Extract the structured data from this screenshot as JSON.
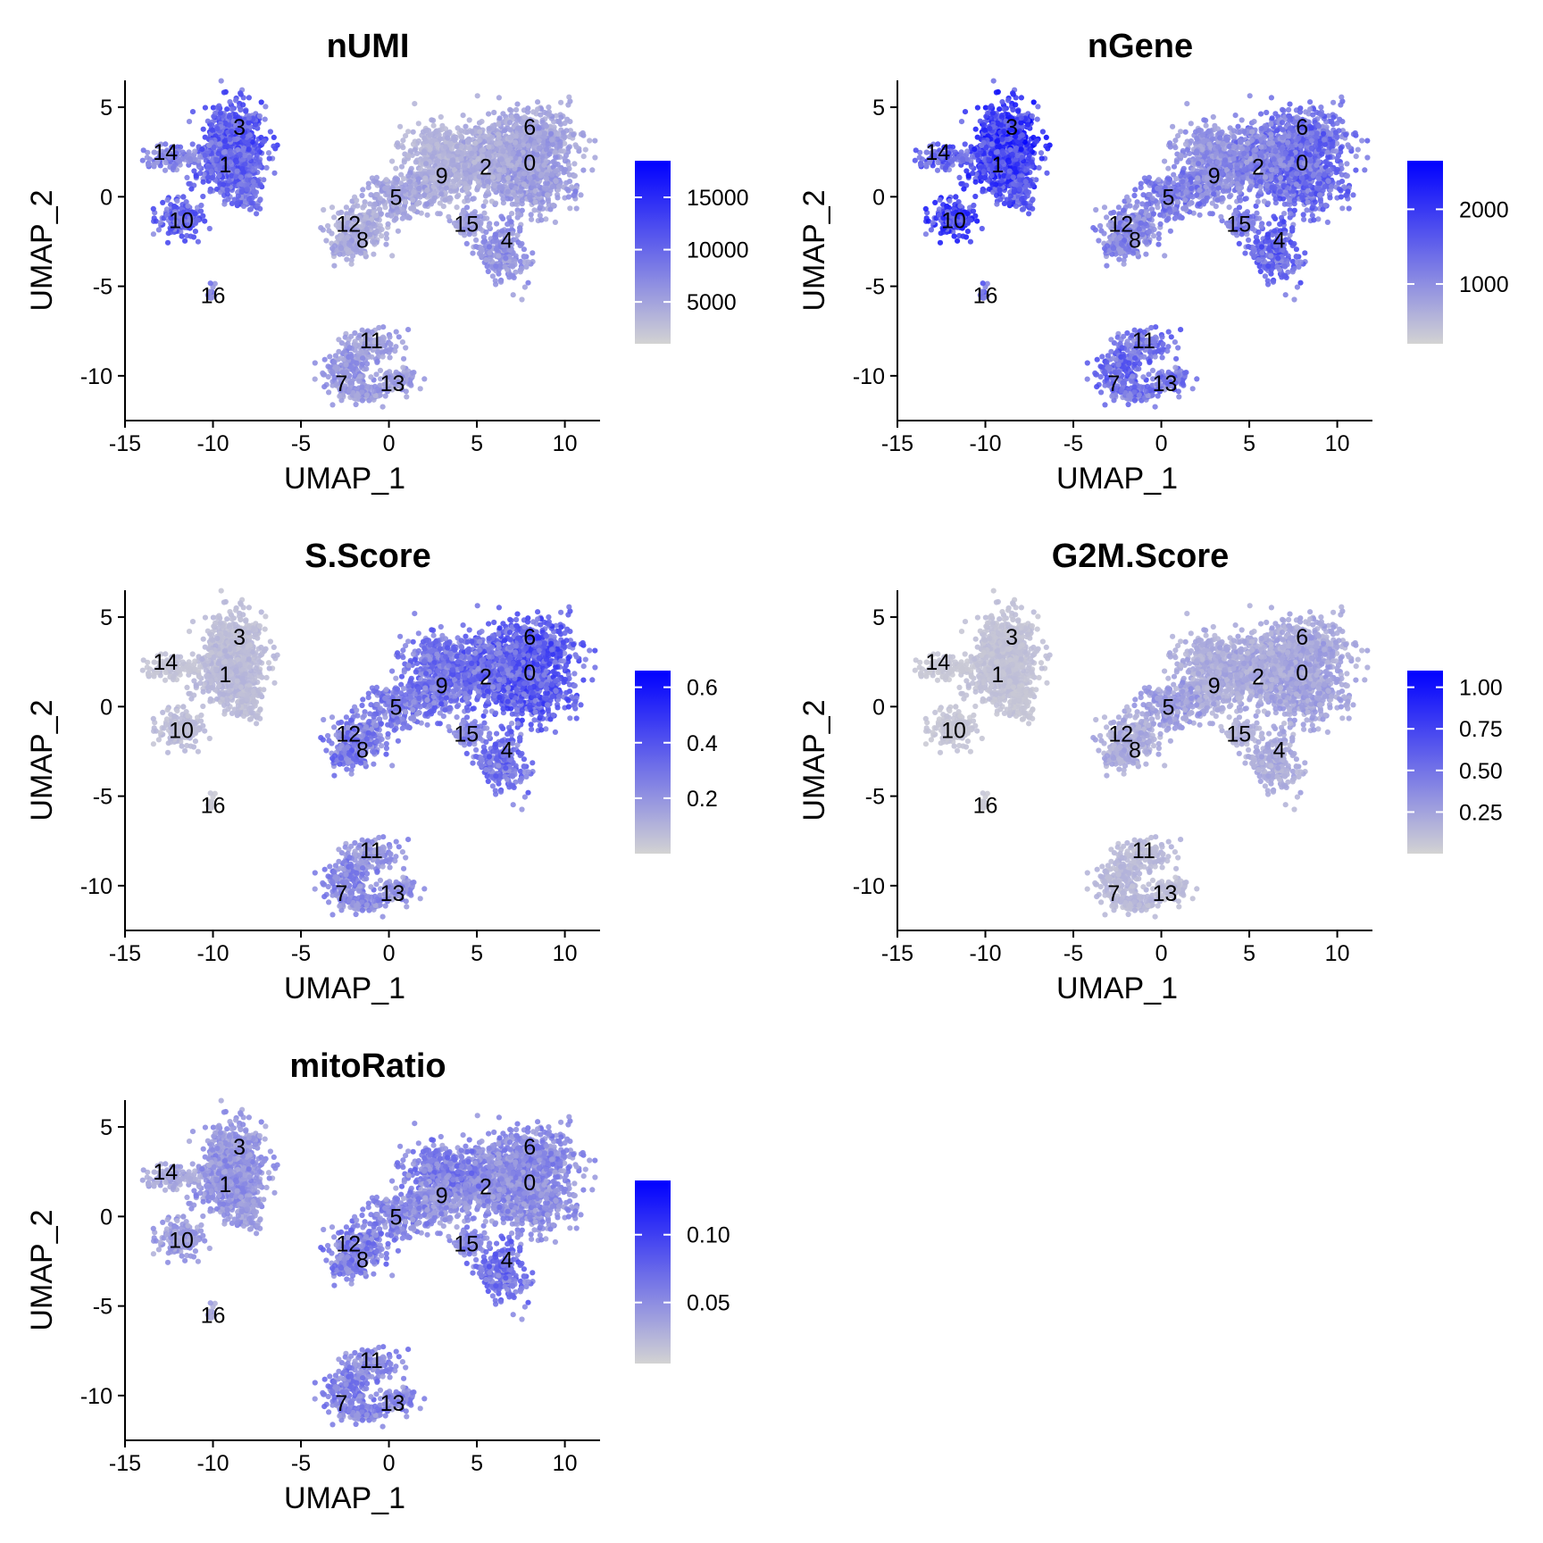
{
  "chart_data": [
    {
      "type": "scatter",
      "title": "nUMI",
      "xlabel": "UMAP_1",
      "ylabel": "UMAP_2",
      "xlim": [
        -15,
        12
      ],
      "ylim": [
        -12.5,
        6.5
      ],
      "xticks": [
        -15,
        -10,
        -5,
        0,
        5,
        10
      ],
      "yticks": [
        5,
        0,
        -5,
        -10
      ],
      "grid": false,
      "legend": {
        "position": "right",
        "low_color": "#d3d3d3",
        "high_color": "#0000ff",
        "min": 1000,
        "max": 18500,
        "ticks": [
          15000,
          10000,
          5000
        ]
      },
      "cluster_labels": [
        {
          "label": "3",
          "x": -8.5,
          "y": 3.9
        },
        {
          "label": "14",
          "x": -12.7,
          "y": 2.5
        },
        {
          "label": "1",
          "x": -9.3,
          "y": 1.8
        },
        {
          "label": "10",
          "x": -11.8,
          "y": -1.3
        },
        {
          "label": "16",
          "x": -10.0,
          "y": -5.5
        },
        {
          "label": "6",
          "x": 8.0,
          "y": 3.9
        },
        {
          "label": "2",
          "x": 5.5,
          "y": 1.7
        },
        {
          "label": "0",
          "x": 8.0,
          "y": 1.9
        },
        {
          "label": "9",
          "x": 3.0,
          "y": 1.2
        },
        {
          "label": "5",
          "x": 0.4,
          "y": 0.0
        },
        {
          "label": "12",
          "x": -2.3,
          "y": -1.5
        },
        {
          "label": "8",
          "x": -1.5,
          "y": -2.4
        },
        {
          "label": "15",
          "x": 4.4,
          "y": -1.5
        },
        {
          "label": "4",
          "x": 6.7,
          "y": -2.4
        },
        {
          "label": "11",
          "x": -1.0,
          "y": -8.0
        },
        {
          "label": "7",
          "x": -2.7,
          "y": -10.4
        },
        {
          "label": "13",
          "x": 0.2,
          "y": -10.4
        }
      ]
    },
    {
      "type": "scatter",
      "title": "nGene",
      "xlabel": "UMAP_1",
      "ylabel": "UMAP_2",
      "xlim": [
        -15,
        12
      ],
      "ylim": [
        -12.5,
        6.5
      ],
      "xticks": [
        -15,
        -10,
        -5,
        0,
        5,
        10
      ],
      "yticks": [
        5,
        0,
        -5,
        -10
      ],
      "grid": false,
      "legend": {
        "position": "right",
        "low_color": "#d3d3d3",
        "high_color": "#0000ff",
        "min": 200,
        "max": 2650,
        "ticks": [
          2000,
          1000
        ]
      },
      "cluster_labels": [
        {
          "label": "3",
          "x": -8.5,
          "y": 3.9
        },
        {
          "label": "14",
          "x": -12.7,
          "y": 2.5
        },
        {
          "label": "1",
          "x": -9.3,
          "y": 1.8
        },
        {
          "label": "10",
          "x": -11.8,
          "y": -1.3
        },
        {
          "label": "16",
          "x": -10.0,
          "y": -5.5
        },
        {
          "label": "6",
          "x": 8.0,
          "y": 3.9
        },
        {
          "label": "2",
          "x": 5.5,
          "y": 1.7
        },
        {
          "label": "0",
          "x": 8.0,
          "y": 1.9
        },
        {
          "label": "9",
          "x": 3.0,
          "y": 1.2
        },
        {
          "label": "5",
          "x": 0.4,
          "y": 0.0
        },
        {
          "label": "12",
          "x": -2.3,
          "y": -1.5
        },
        {
          "label": "8",
          "x": -1.5,
          "y": -2.4
        },
        {
          "label": "15",
          "x": 4.4,
          "y": -1.5
        },
        {
          "label": "4",
          "x": 6.7,
          "y": -2.4
        },
        {
          "label": "11",
          "x": -1.0,
          "y": -8.0
        },
        {
          "label": "7",
          "x": -2.7,
          "y": -10.4
        },
        {
          "label": "13",
          "x": 0.2,
          "y": -10.4
        }
      ]
    },
    {
      "type": "scatter",
      "title": "S.Score",
      "xlabel": "UMAP_1",
      "ylabel": "UMAP_2",
      "xlim": [
        -15,
        12
      ],
      "ylim": [
        -12.5,
        6.5
      ],
      "xticks": [
        -15,
        -10,
        -5,
        0,
        5,
        10
      ],
      "yticks": [
        5,
        0,
        -5,
        -10
      ],
      "grid": false,
      "legend": {
        "position": "right",
        "low_color": "#d3d3d3",
        "high_color": "#0000ff",
        "min": 0.0,
        "max": 0.66,
        "ticks": [
          0.6,
          0.4,
          0.2
        ],
        "tick_labels": [
          "0.6",
          "0.4",
          "0.2"
        ]
      },
      "cluster_labels": [
        {
          "label": "3",
          "x": -8.5,
          "y": 3.9
        },
        {
          "label": "14",
          "x": -12.7,
          "y": 2.5
        },
        {
          "label": "1",
          "x": -9.3,
          "y": 1.8
        },
        {
          "label": "10",
          "x": -11.8,
          "y": -1.3
        },
        {
          "label": "16",
          "x": -10.0,
          "y": -5.5
        },
        {
          "label": "6",
          "x": 8.0,
          "y": 3.9
        },
        {
          "label": "2",
          "x": 5.5,
          "y": 1.7
        },
        {
          "label": "0",
          "x": 8.0,
          "y": 1.9
        },
        {
          "label": "9",
          "x": 3.0,
          "y": 1.2
        },
        {
          "label": "5",
          "x": 0.4,
          "y": 0.0
        },
        {
          "label": "12",
          "x": -2.3,
          "y": -1.5
        },
        {
          "label": "8",
          "x": -1.5,
          "y": -2.4
        },
        {
          "label": "15",
          "x": 4.4,
          "y": -1.5
        },
        {
          "label": "4",
          "x": 6.7,
          "y": -2.4
        },
        {
          "label": "11",
          "x": -1.0,
          "y": -8.0
        },
        {
          "label": "7",
          "x": -2.7,
          "y": -10.4
        },
        {
          "label": "13",
          "x": 0.2,
          "y": -10.4
        }
      ]
    },
    {
      "type": "scatter",
      "title": "G2M.Score",
      "xlabel": "UMAP_1",
      "ylabel": "UMAP_2",
      "xlim": [
        -15,
        12
      ],
      "ylim": [
        -12.5,
        6.5
      ],
      "xticks": [
        -15,
        -10,
        -5,
        0,
        5,
        10
      ],
      "yticks": [
        5,
        0,
        -5,
        -10
      ],
      "grid": false,
      "legend": {
        "position": "right",
        "low_color": "#d3d3d3",
        "high_color": "#0000ff",
        "min": 0.0,
        "max": 1.1,
        "ticks": [
          1.0,
          0.75,
          0.5,
          0.25
        ],
        "tick_labels": [
          "1.00",
          "0.75",
          "0.50",
          "0.25"
        ]
      },
      "cluster_labels": [
        {
          "label": "3",
          "x": -8.5,
          "y": 3.9
        },
        {
          "label": "14",
          "x": -12.7,
          "y": 2.5
        },
        {
          "label": "1",
          "x": -9.3,
          "y": 1.8
        },
        {
          "label": "10",
          "x": -11.8,
          "y": -1.3
        },
        {
          "label": "16",
          "x": -10.0,
          "y": -5.5
        },
        {
          "label": "6",
          "x": 8.0,
          "y": 3.9
        },
        {
          "label": "2",
          "x": 5.5,
          "y": 1.7
        },
        {
          "label": "0",
          "x": 8.0,
          "y": 1.9
        },
        {
          "label": "9",
          "x": 3.0,
          "y": 1.2
        },
        {
          "label": "5",
          "x": 0.4,
          "y": 0.0
        },
        {
          "label": "12",
          "x": -2.3,
          "y": -1.5
        },
        {
          "label": "8",
          "x": -1.5,
          "y": -2.4
        },
        {
          "label": "15",
          "x": 4.4,
          "y": -1.5
        },
        {
          "label": "4",
          "x": 6.7,
          "y": -2.4
        },
        {
          "label": "11",
          "x": -1.0,
          "y": -8.0
        },
        {
          "label": "7",
          "x": -2.7,
          "y": -10.4
        },
        {
          "label": "13",
          "x": 0.2,
          "y": -10.4
        }
      ]
    },
    {
      "type": "scatter",
      "title": "mitoRatio",
      "xlabel": "UMAP_1",
      "ylabel": "UMAP_2",
      "xlim": [
        -15,
        12
      ],
      "ylim": [
        -12.5,
        6.5
      ],
      "xticks": [
        -15,
        -10,
        -5,
        0,
        5,
        10
      ],
      "yticks": [
        5,
        0,
        -5,
        -10
      ],
      "grid": false,
      "legend": {
        "position": "right",
        "low_color": "#d3d3d3",
        "high_color": "#0000ff",
        "min": 0.005,
        "max": 0.14,
        "ticks": [
          0.1,
          0.05
        ],
        "tick_labels": [
          "0.10",
          "0.05"
        ]
      },
      "cluster_labels": [
        {
          "label": "3",
          "x": -8.5,
          "y": 3.9
        },
        {
          "label": "14",
          "x": -12.7,
          "y": 2.5
        },
        {
          "label": "1",
          "x": -9.3,
          "y": 1.8
        },
        {
          "label": "10",
          "x": -11.8,
          "y": -1.3
        },
        {
          "label": "16",
          "x": -10.0,
          "y": -5.5
        },
        {
          "label": "6",
          "x": 8.0,
          "y": 3.9
        },
        {
          "label": "2",
          "x": 5.5,
          "y": 1.7
        },
        {
          "label": "0",
          "x": 8.0,
          "y": 1.9
        },
        {
          "label": "9",
          "x": 3.0,
          "y": 1.2
        },
        {
          "label": "5",
          "x": 0.4,
          "y": 0.0
        },
        {
          "label": "12",
          "x": -2.3,
          "y": -1.5
        },
        {
          "label": "8",
          "x": -1.5,
          "y": -2.4
        },
        {
          "label": "15",
          "x": 4.4,
          "y": -1.5
        },
        {
          "label": "4",
          "x": 6.7,
          "y": -2.4
        },
        {
          "label": "11",
          "x": -1.0,
          "y": -8.0
        },
        {
          "label": "7",
          "x": -2.7,
          "y": -10.4
        },
        {
          "label": "13",
          "x": 0.2,
          "y": -10.4
        }
      ]
    }
  ]
}
